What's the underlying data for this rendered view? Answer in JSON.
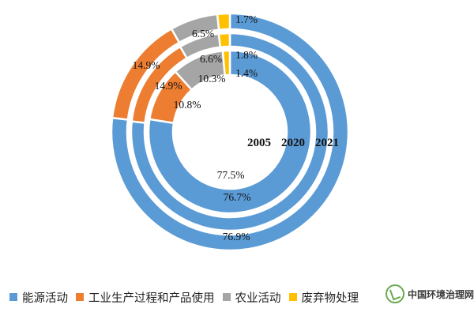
{
  "chart_data": {
    "type": "donut",
    "categories": [
      "能源活动",
      "工业生产过程和产品使用",
      "农业活动",
      "废弃物处理"
    ],
    "series": [
      {
        "name": "2005",
        "values": [
          77.5,
          10.8,
          10.3,
          1.4
        ],
        "labels": [
          "77.5%",
          "10.8%",
          "10.3%",
          "1.4%"
        ]
      },
      {
        "name": "2020",
        "values": [
          76.7,
          14.9,
          6.6,
          1.8
        ],
        "labels": [
          "76.7%",
          "14.9%",
          "6.6%",
          "1.8%"
        ]
      },
      {
        "name": "2021",
        "values": [
          76.9,
          14.9,
          6.5,
          1.7
        ],
        "labels": [
          "76.9%",
          "14.9%",
          "6.5%",
          "1.7%"
        ]
      }
    ],
    "colors": [
      "#5b9bd5",
      "#ed7d31",
      "#a5a5a5",
      "#ffc000"
    ],
    "center_text": [
      "2005",
      "2020",
      "2021"
    ],
    "legend_position": "bottom"
  },
  "watermark": {
    "text": "中国环境治理网"
  }
}
